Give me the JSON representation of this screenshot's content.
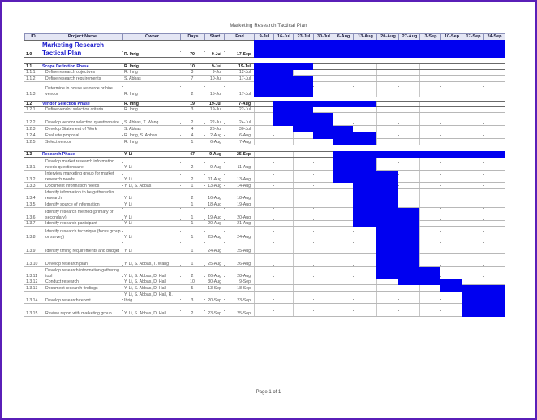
{
  "page": {
    "title": "Marketing Research Tactical Plan",
    "footer": "Page 1 of 1",
    "bar_color": "#0000f0",
    "frame_color": "#5a1fb8"
  },
  "columns": {
    "id": "ID",
    "name": "Project Name",
    "owner": "Owner",
    "days": "Days",
    "start": "Start",
    "end": "End"
  },
  "weeks": [
    "9-Jul",
    "16-Jul",
    "23-Jul",
    "30-Jul",
    "6-Aug",
    "13-Aug",
    "20-Aug",
    "27-Aug",
    "3-Sep",
    "10-Sep",
    "17-Sep",
    "24-Sep"
  ],
  "rows": [
    {
      "id": "1.0",
      "name": "Marketing Research Tactical Plan",
      "owner": "R. Ihrig",
      "days": "70",
      "start": "9-Jul",
      "end": "17-Sep",
      "level": "top",
      "bar": [
        0,
        11
      ]
    },
    {
      "id": "1.1",
      "name": "Scope Definition Phase",
      "owner": "R. Ihrig",
      "days": "10",
      "start": "9-Jul",
      "end": "19-Jul",
      "level": "phase",
      "bar": [
        0,
        2
      ]
    },
    {
      "id": "1.1.1",
      "name": "Define research objectives",
      "owner": "R. Ihrig",
      "days": "3",
      "start": "9-Jul",
      "end": "12-Jul",
      "level": "task",
      "bar": [
        0,
        1
      ]
    },
    {
      "id": "1.1.2",
      "name": "Define research requirements",
      "owner": "S. Abbas",
      "days": "7",
      "start": "10-Jul",
      "end": "17-Jul",
      "level": "task",
      "bar": [
        0,
        2
      ]
    },
    {
      "id": "1.1.3",
      "name": "Determine in house resource or hire vendor",
      "owner": "R. Ihrig",
      "days": "2",
      "start": "15-Jul",
      "end": "17-Jul",
      "level": "task",
      "bar": [
        0,
        2
      ]
    },
    {
      "id": "1.2",
      "name": "Vendor Selection Phase",
      "owner": "R. Ihrig",
      "days": "19",
      "start": "19-Jul",
      "end": "7-Aug",
      "level": "phase",
      "bar": [
        1,
        5
      ]
    },
    {
      "id": "1.2.1",
      "name": "Define vendor selection criteria",
      "owner": "R. Ihrig",
      "days": "3",
      "start": "19-Jul",
      "end": "22-Jul",
      "level": "task",
      "bar": [
        1,
        2
      ]
    },
    {
      "id": "1.2.2",
      "name": "Develop vendor selection questionnaire",
      "owner": "S. Abbas, T. Wang",
      "days": "2",
      "start": "22-Jul",
      "end": "24-Jul",
      "level": "task",
      "bar": [
        1,
        3
      ]
    },
    {
      "id": "1.2.3",
      "name": "Develop Statement of Work",
      "owner": "S. Abbas",
      "days": "4",
      "start": "26-Jul",
      "end": "30-Jul",
      "level": "task",
      "bar": [
        2,
        4
      ]
    },
    {
      "id": "1.2.4",
      "name": "Evaluate proposal",
      "owner": "R. Ihrig, S. Abbas",
      "days": "4",
      "start": "2-Aug",
      "end": "6-Aug",
      "level": "task",
      "bar": [
        3,
        5
      ]
    },
    {
      "id": "1.2.5",
      "name": "Select vendor",
      "owner": "R. Ihrig",
      "days": "1",
      "start": "6-Aug",
      "end": "7-Aug",
      "level": "task",
      "bar": [
        4,
        5
      ]
    },
    {
      "id": "1.3",
      "name": "Research Phase",
      "owner": "Y. Li",
      "days": "47",
      "start": "9-Aug",
      "end": "25-Sep",
      "level": "phase",
      "bar": [
        4,
        11
      ]
    },
    {
      "id": "1.3.1",
      "name": "Develop market research information needs questionnaire",
      "owner": "Y. Li",
      "days": "2",
      "start": "9-Aug",
      "end": "11-Aug",
      "level": "task",
      "bar": [
        4,
        5
      ]
    },
    {
      "id": "1.3.2",
      "name": "Interview marketing group for market research needs",
      "owner": "Y. Li",
      "days": "2",
      "start": "11-Aug",
      "end": "13-Aug",
      "level": "task",
      "bar": [
        4,
        6
      ]
    },
    {
      "id": "1.3.3",
      "name": "Document information needs",
      "owner": "Y. Li, S. Abbas",
      "days": "1",
      "start": "13-Aug",
      "end": "14-Aug",
      "level": "task",
      "bar": [
        5,
        6
      ]
    },
    {
      "id": "1.3.4",
      "name": "Identify information to be gathered in research",
      "owner": "Y. Li",
      "days": "2",
      "start": "16-Aug",
      "end": "18-Aug",
      "level": "task",
      "bar": [
        5,
        6
      ]
    },
    {
      "id": "1.3.5",
      "name": "Identify source of information",
      "owner": "Y. Li",
      "days": "1",
      "start": "18-Aug",
      "end": "19-Aug",
      "level": "task",
      "bar": [
        5,
        6
      ]
    },
    {
      "id": "1.3.6",
      "name": "Identify research method (primary or secondary)",
      "owner": "Y. Li",
      "days": "1",
      "start": "19-Aug",
      "end": "20-Aug",
      "level": "task",
      "bar": [
        5,
        7
      ]
    },
    {
      "id": "1.3.7",
      "name": "Identify research participant",
      "owner": "Y. Li",
      "days": "1",
      "start": "20-Aug",
      "end": "21-Aug",
      "level": "task",
      "bar": [
        5,
        7
      ]
    },
    {
      "id": "1.3.8",
      "name": "Identify research technique (focus group or survey)",
      "owner": "Y. Li",
      "days": "1",
      "start": "23-Aug",
      "end": "24-Aug",
      "level": "task",
      "bar": [
        6,
        7
      ]
    },
    {
      "id": "1.3.9",
      "name": "Identify timing requirements and budget",
      "owner": "Y. Li",
      "days": "1",
      "start": "24-Aug",
      "end": "25-Aug",
      "level": "task",
      "bar": [
        6,
        7
      ]
    },
    {
      "id": "1.3.10",
      "name": "Develop research plan",
      "owner": "Y. Li, S. Abbas, T. Wang",
      "days": "1",
      "start": "25-Aug",
      "end": "26-Aug",
      "level": "task",
      "bar": [
        6,
        7
      ]
    },
    {
      "id": "1.3.11",
      "name": "Develop research information gathering tool",
      "owner": "Y. Li, S. Abbas, D. Hall",
      "days": "2",
      "start": "26-Aug",
      "end": "28-Aug",
      "level": "task",
      "bar": [
        6,
        8
      ]
    },
    {
      "id": "1.3.12",
      "name": "Conduct research",
      "owner": "Y. Li, S. Abbas, D. Hall",
      "days": "10",
      "start": "30-Aug",
      "end": "9-Sep",
      "level": "task",
      "bar": [
        7,
        9
      ]
    },
    {
      "id": "1.3.13",
      "name": "Document research findings",
      "owner": "Y. Li, S. Abbas, D. Hall",
      "days": "5",
      "start": "13-Sep",
      "end": "18-Sep",
      "level": "task",
      "bar": [
        9,
        11
      ]
    },
    {
      "id": "1.3.14",
      "name": "Develop research report",
      "owner": "Y. Li, S. Abbas, D. Hall, R. Ihrig",
      "days": "3",
      "start": "20-Sep",
      "end": "23-Sep",
      "level": "task",
      "bar": [
        10,
        11
      ]
    },
    {
      "id": "1.3.15",
      "name": "Review report with marketing group",
      "owner": "Y. Li, S. Abbas, D. Hall",
      "days": "2",
      "start": "23-Sep",
      "end": "25-Sep",
      "level": "task",
      "bar": [
        10,
        11
      ]
    }
  ]
}
